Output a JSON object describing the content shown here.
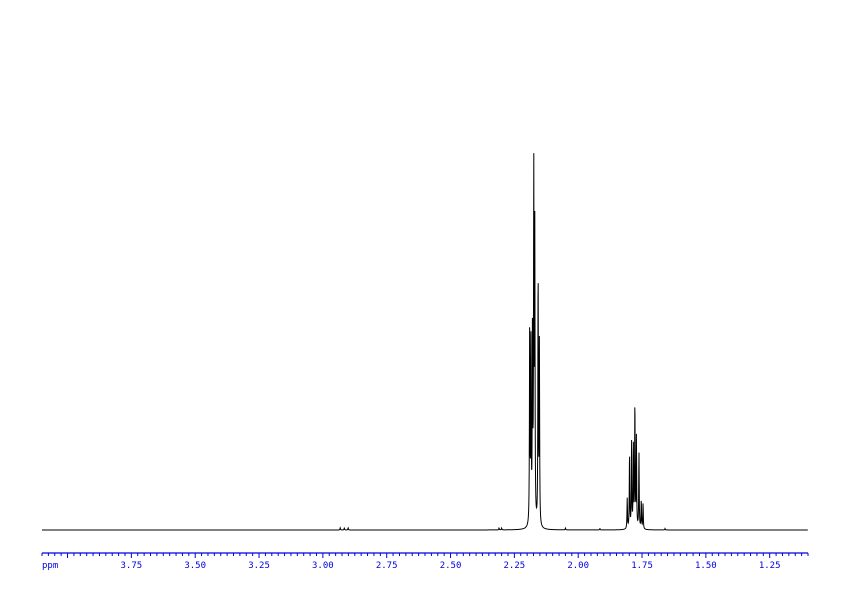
{
  "chart_data": {
    "type": "line",
    "title": "",
    "xlabel": "ppm",
    "ylabel": "",
    "xlim": [
      4.1,
      1.1
    ],
    "x_reversed": true,
    "ylim": [
      0,
      100
    ],
    "grid": false,
    "axis_color": "#0000e0",
    "line_color": "#000000",
    "x_ticks": [
      "3.75",
      "3.50",
      "3.25",
      "3.00",
      "2.75",
      "2.50",
      "2.25",
      "2.00",
      "1.75",
      "1.50",
      "1.25"
    ],
    "peaks": [
      {
        "ppm": 2.932,
        "intensity": 0.6
      },
      {
        "ppm": 2.916,
        "intensity": 0.6
      },
      {
        "ppm": 2.901,
        "intensity": 0.6
      },
      {
        "ppm": 2.31,
        "intensity": 0.5
      },
      {
        "ppm": 2.3,
        "intensity": 0.5
      },
      {
        "ppm": 2.19,
        "intensity": 58
      },
      {
        "ppm": 2.185,
        "intensity": 50
      },
      {
        "ppm": 2.179,
        "intensity": 57
      },
      {
        "ppm": 2.174,
        "intensity": 96
      },
      {
        "ppm": 2.17,
        "intensity": 80
      },
      {
        "ppm": 2.157,
        "intensity": 71
      },
      {
        "ppm": 2.152,
        "intensity": 50
      },
      {
        "ppm": 2.05,
        "intensity": 0.5
      },
      {
        "ppm": 1.915,
        "intensity": 0.4
      },
      {
        "ppm": 1.808,
        "intensity": 8.5
      },
      {
        "ppm": 1.799,
        "intensity": 21
      },
      {
        "ppm": 1.791,
        "intensity": 24
      },
      {
        "ppm": 1.784,
        "intensity": 23
      },
      {
        "ppm": 1.778,
        "intensity": 35
      },
      {
        "ppm": 1.772,
        "intensity": 25
      },
      {
        "ppm": 1.762,
        "intensity": 21
      },
      {
        "ppm": 1.753,
        "intensity": 7.8
      },
      {
        "ppm": 1.746,
        "intensity": 7.2
      },
      {
        "ppm": 1.66,
        "intensity": 0.4
      }
    ]
  }
}
